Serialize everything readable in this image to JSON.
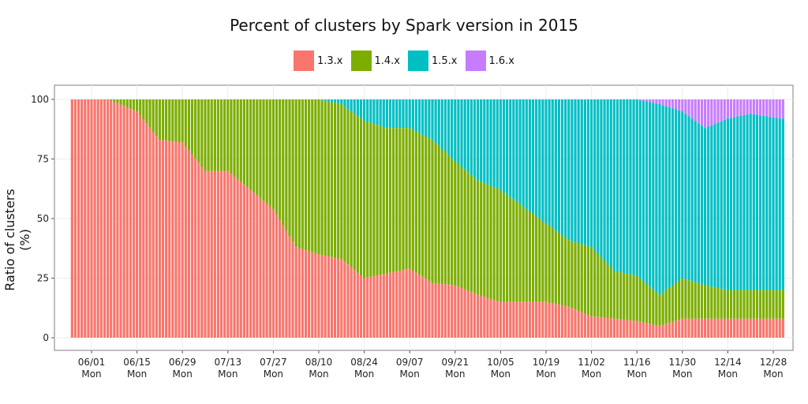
{
  "chart_data": {
    "type": "bar",
    "stacked": true,
    "title": "Percent of clusters by Spark version in 2015",
    "ylabel": "Ratio of clusters (%)",
    "xlabel": "",
    "ylim": [
      0,
      100
    ],
    "yticks": [
      0,
      25,
      50,
      75,
      100
    ],
    "xticks": [
      {
        "date": "06/01",
        "day": "Mon"
      },
      {
        "date": "06/15",
        "day": "Mon"
      },
      {
        "date": "06/29",
        "day": "Mon"
      },
      {
        "date": "07/13",
        "day": "Mon"
      },
      {
        "date": "07/27",
        "day": "Mon"
      },
      {
        "date": "08/10",
        "day": "Mon"
      },
      {
        "date": "08/24",
        "day": "Mon"
      },
      {
        "date": "09/07",
        "day": "Mon"
      },
      {
        "date": "09/21",
        "day": "Mon"
      },
      {
        "date": "10/05",
        "day": "Mon"
      },
      {
        "date": "10/19",
        "day": "Mon"
      },
      {
        "date": "11/02",
        "day": "Mon"
      },
      {
        "date": "11/16",
        "day": "Mon"
      },
      {
        "date": "11/30",
        "day": "Mon"
      },
      {
        "date": "12/14",
        "day": "Mon"
      },
      {
        "date": "12/28",
        "day": "Mon"
      }
    ],
    "grid": true,
    "legend_position": "top",
    "first_date": "2015-05-26",
    "series": [
      {
        "name": "1.3.x",
        "color": "#F8766D"
      },
      {
        "name": "1.4.x",
        "color": "#7CAE00"
      },
      {
        "name": "1.5.x",
        "color": "#00BFC4"
      },
      {
        "name": "1.6.x",
        "color": "#C77CFF"
      }
    ],
    "segments": [
      {
        "from": "2015-05-26",
        "to": "2015-06-06",
        "v13": 100,
        "v14": 0,
        "v15": 0,
        "v16": 0
      },
      {
        "from": "2015-06-08",
        "to": "2015-06-08",
        "v13": 99,
        "v14": 1,
        "v15": 0,
        "v16": 0
      },
      {
        "from": "2015-06-15",
        "to": "2015-06-15",
        "v13": 95,
        "v14": 5,
        "v15": 0,
        "v16": 0
      },
      {
        "from": "2015-06-22",
        "to": "2015-06-22",
        "v13": 83,
        "v14": 17,
        "v15": 0,
        "v16": 0
      },
      {
        "from": "2015-06-29",
        "to": "2015-06-29",
        "v13": 82,
        "v14": 18,
        "v15": 0,
        "v16": 0
      },
      {
        "from": "2015-07-06",
        "to": "2015-07-06",
        "v13": 70,
        "v14": 30,
        "v15": 0,
        "v16": 0
      },
      {
        "from": "2015-07-13",
        "to": "2015-07-13",
        "v13": 70,
        "v14": 30,
        "v15": 0,
        "v16": 0
      },
      {
        "from": "2015-07-20",
        "to": "2015-07-20",
        "v13": 62,
        "v14": 38,
        "v15": 0,
        "v16": 0
      },
      {
        "from": "2015-07-27",
        "to": "2015-07-27",
        "v13": 54,
        "v14": 46,
        "v15": 0,
        "v16": 0
      },
      {
        "from": "2015-08-03",
        "to": "2015-08-03",
        "v13": 38,
        "v14": 62,
        "v15": 0,
        "v16": 0
      },
      {
        "from": "2015-08-10",
        "to": "2015-08-10",
        "v13": 35,
        "v14": 65,
        "v15": 0,
        "v16": 0
      },
      {
        "from": "2015-08-17",
        "to": "2015-08-17",
        "v13": 33,
        "v14": 65,
        "v15": 2,
        "v16": 0
      },
      {
        "from": "2015-08-24",
        "to": "2015-08-24",
        "v13": 25,
        "v14": 66,
        "v15": 9,
        "v16": 0
      },
      {
        "from": "2015-08-31",
        "to": "2015-08-31",
        "v13": 27,
        "v14": 61,
        "v15": 12,
        "v16": 0
      },
      {
        "from": "2015-09-07",
        "to": "2015-09-07",
        "v13": 29,
        "v14": 59,
        "v15": 12,
        "v16": 0
      },
      {
        "from": "2015-09-14",
        "to": "2015-09-14",
        "v13": 23,
        "v14": 60,
        "v15": 17,
        "v16": 0
      },
      {
        "from": "2015-09-21",
        "to": "2015-09-21",
        "v13": 22,
        "v14": 52,
        "v15": 26,
        "v16": 0
      },
      {
        "from": "2015-09-28",
        "to": "2015-09-28",
        "v13": 18,
        "v14": 48,
        "v15": 34,
        "v16": 0
      },
      {
        "from": "2015-10-05",
        "to": "2015-10-05",
        "v13": 15,
        "v14": 47,
        "v15": 38,
        "v16": 0
      },
      {
        "from": "2015-10-12",
        "to": "2015-10-12",
        "v13": 15,
        "v14": 40,
        "v15": 45,
        "v16": 0
      },
      {
        "from": "2015-10-19",
        "to": "2015-10-19",
        "v13": 15,
        "v14": 33,
        "v15": 52,
        "v16": 0
      },
      {
        "from": "2015-10-26",
        "to": "2015-10-26",
        "v13": 13,
        "v14": 28,
        "v15": 59,
        "v16": 0
      },
      {
        "from": "2015-11-02",
        "to": "2015-11-02",
        "v13": 9,
        "v14": 29,
        "v15": 62,
        "v16": 0
      },
      {
        "from": "2015-11-09",
        "to": "2015-11-09",
        "v13": 8,
        "v14": 20,
        "v15": 72,
        "v16": 0
      },
      {
        "from": "2015-11-16",
        "to": "2015-11-16",
        "v13": 7,
        "v14": 19,
        "v15": 74,
        "v16": 0
      },
      {
        "from": "2015-11-23",
        "to": "2015-11-23",
        "v13": 5,
        "v14": 13,
        "v15": 80,
        "v16": 2
      },
      {
        "from": "2015-11-30",
        "to": "2015-11-30",
        "v13": 8,
        "v14": 17,
        "v15": 70,
        "v16": 5
      },
      {
        "from": "2015-12-07",
        "to": "2015-12-07",
        "v13": 8,
        "v14": 14,
        "v15": 66,
        "v16": 12
      },
      {
        "from": "2015-12-14",
        "to": "2015-12-14",
        "v13": 8,
        "v14": 12,
        "v15": 72,
        "v16": 8
      },
      {
        "from": "2015-12-21",
        "to": "2015-12-21",
        "v13": 8,
        "v14": 12,
        "v15": 74,
        "v16": 6
      },
      {
        "from": "2015-12-30",
        "to": "2015-12-30",
        "v13": 8,
        "v14": 12,
        "v15": 72,
        "v16": 8
      }
    ]
  }
}
